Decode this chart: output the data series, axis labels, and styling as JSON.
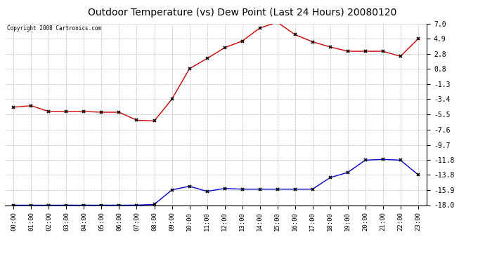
{
  "title": "Outdoor Temperature (vs) Dew Point (Last 24 Hours) 20080120",
  "copyright_text": "Copyright 2008 Cartronics.com",
  "x_labels": [
    "00:00",
    "01:00",
    "02:00",
    "03:00",
    "04:00",
    "05:00",
    "06:00",
    "07:00",
    "08:00",
    "09:00",
    "10:00",
    "11:00",
    "12:00",
    "13:00",
    "14:00",
    "15:00",
    "16:00",
    "17:00",
    "18:00",
    "19:00",
    "20:00",
    "21:00",
    "22:00",
    "23:00"
  ],
  "temp_data": [
    -4.5,
    -4.3,
    -5.1,
    -5.1,
    -5.1,
    -5.2,
    -5.2,
    -6.3,
    -6.4,
    -3.4,
    0.8,
    2.2,
    3.7,
    4.6,
    6.4,
    7.2,
    5.5,
    4.5,
    3.8,
    3.2,
    3.2,
    3.2,
    2.5,
    4.9
  ],
  "dew_data": [
    -18.0,
    -18.0,
    -18.0,
    -18.0,
    -18.0,
    -18.0,
    -18.0,
    -18.0,
    -17.9,
    -15.9,
    -15.4,
    -16.1,
    -15.7,
    -15.8,
    -15.8,
    -15.8,
    -15.8,
    -15.8,
    -14.2,
    -13.5,
    -11.8,
    -11.7,
    -11.8,
    -13.8
  ],
  "y_ticks": [
    7.0,
    4.9,
    2.8,
    0.8,
    -1.3,
    -3.4,
    -5.5,
    -7.6,
    -9.7,
    -11.8,
    -13.8,
    -15.9,
    -18.0
  ],
  "y_min": -18.0,
  "y_max": 7.0,
  "temp_color": "#cc0000",
  "dew_color": "#0000cc",
  "grid_color": "#bbbbbb",
  "bg_color": "#ffffff",
  "plot_bg_color": "#ffffff"
}
